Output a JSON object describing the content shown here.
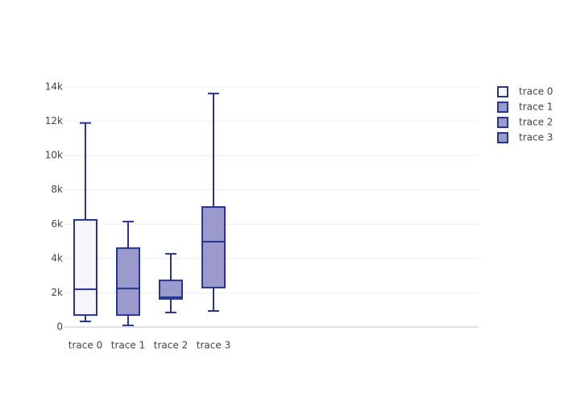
{
  "chart_data": {
    "type": "box",
    "series": [
      {
        "name": "trace 0",
        "color": "#283593",
        "fill": "#f6f6fa",
        "min": 330,
        "q1": 700,
        "median": 2200,
        "q3": 6250,
        "max": 11900
      },
      {
        "name": "trace 1",
        "color": "#283593",
        "fill": "#9a9acd",
        "min": 100,
        "q1": 700,
        "median": 2250,
        "q3": 4600,
        "max": 6150
      },
      {
        "name": "trace 2",
        "color": "#283593",
        "fill": "#9a9acd",
        "min": 850,
        "q1": 1640,
        "median": 1740,
        "q3": 2720,
        "max": 4270
      },
      {
        "name": "trace 3",
        "color": "#283593",
        "fill": "#9a9acd",
        "min": 940,
        "q1": 2300,
        "median": 4980,
        "q3": 7000,
        "max": 13620
      }
    ],
    "ylim": [
      0,
      14000
    ],
    "yticks": [
      0,
      {
        "value": 2000,
        "label": "2k"
      },
      {
        "value": 4000,
        "label": "4k"
      },
      {
        "value": 6000,
        "label": "6k"
      },
      {
        "value": 8000,
        "label": "8k"
      },
      {
        "value": 10000,
        "label": "10k"
      },
      {
        "value": 12000,
        "label": "12k"
      },
      {
        "value": 14000,
        "label": "14k"
      }
    ],
    "grid": true
  }
}
